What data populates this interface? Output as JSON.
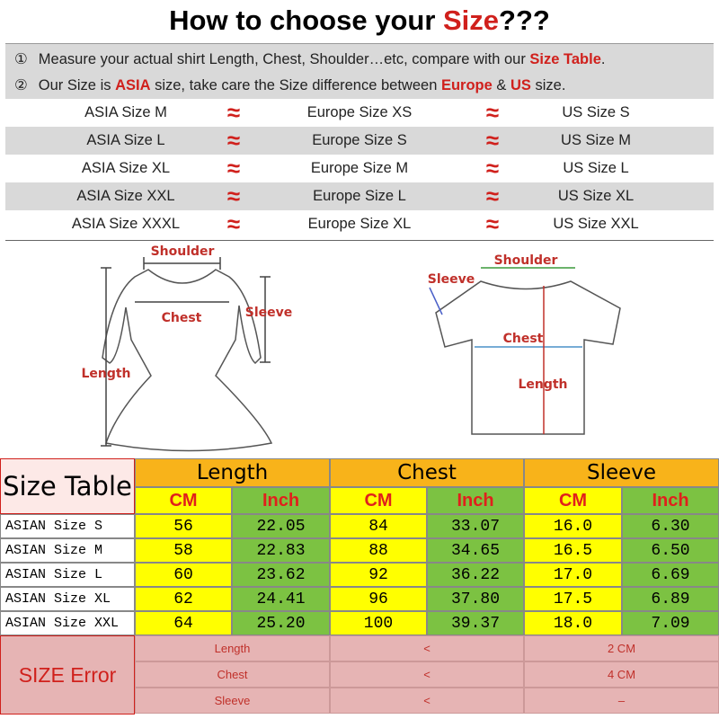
{
  "title": {
    "prefix": "How to choose your ",
    "highlight": "Size",
    "suffix": "???"
  },
  "instructions": [
    {
      "marker": "①",
      "segments": [
        {
          "text": "Measure your actual shirt Length, Chest, Shoulder…etc, compare with our ",
          "highlight": false
        },
        {
          "text": "Size Table",
          "highlight": true
        },
        {
          "text": ".",
          "highlight": false
        }
      ]
    },
    {
      "marker": "②",
      "segments": [
        {
          "text": "Our Size is ",
          "highlight": false
        },
        {
          "text": "ASIA",
          "highlight": true
        },
        {
          "text": " size, take care the Size difference between ",
          "highlight": false
        },
        {
          "text": "Europe",
          "highlight": true
        },
        {
          "text": " & ",
          "highlight": false
        },
        {
          "text": "US",
          "highlight": true
        },
        {
          "text": " size.",
          "highlight": false
        }
      ]
    }
  ],
  "conversion": {
    "rows": [
      [
        "ASIA Size M",
        "≈",
        "Europe Size XS",
        "≈",
        "US Size S"
      ],
      [
        "ASIA Size L",
        "≈",
        "Europe Size S",
        "≈",
        "US Size M"
      ],
      [
        "ASIA Size XL",
        "≈",
        "Europe Size M",
        "≈",
        "US Size L"
      ],
      [
        "ASIA Size XXL",
        "≈",
        "Europe Size L",
        "≈",
        "US Size XL"
      ],
      [
        "ASIA Size XXXL",
        "≈",
        "Europe Size XL",
        "≈",
        "US Size XXL"
      ]
    ]
  },
  "diagrams": {
    "dress": {
      "shoulder": "Shoulder",
      "chest": "Chest",
      "sleeve": "Sleeve",
      "length": "Length"
    },
    "tshirt": {
      "sleeve": "Sleeve",
      "shoulder": "Shoulder",
      "chest": "Chest",
      "length": "Length"
    }
  },
  "size_table": {
    "title": "Size Table",
    "groups": [
      "Length",
      "Chest",
      "Sleeve"
    ],
    "units": [
      "CM",
      "Inch",
      "CM",
      "Inch",
      "CM",
      "Inch"
    ],
    "rows": [
      [
        "ASIAN Size S",
        "56",
        "22.05",
        "84",
        "33.07",
        "16.0",
        "6.30"
      ],
      [
        "ASIAN Size M",
        "58",
        "22.83",
        "88",
        "34.65",
        "16.5",
        "6.50"
      ],
      [
        "ASIAN Size L",
        "60",
        "23.62",
        "92",
        "36.22",
        "17.0",
        "6.69"
      ],
      [
        "ASIAN Size XL",
        "62",
        "24.41",
        "96",
        "37.80",
        "17.5",
        "6.89"
      ],
      [
        "ASIAN Size XXL",
        "64",
        "25.20",
        "100",
        "39.37",
        "18.0",
        "7.09"
      ]
    ]
  },
  "size_error": {
    "label": "SIZE Error",
    "rows": [
      [
        "Length",
        "<",
        "2 CM"
      ],
      [
        "Chest",
        "<",
        "4 CM"
      ],
      [
        "Sleeve",
        "<",
        "–"
      ]
    ]
  }
}
